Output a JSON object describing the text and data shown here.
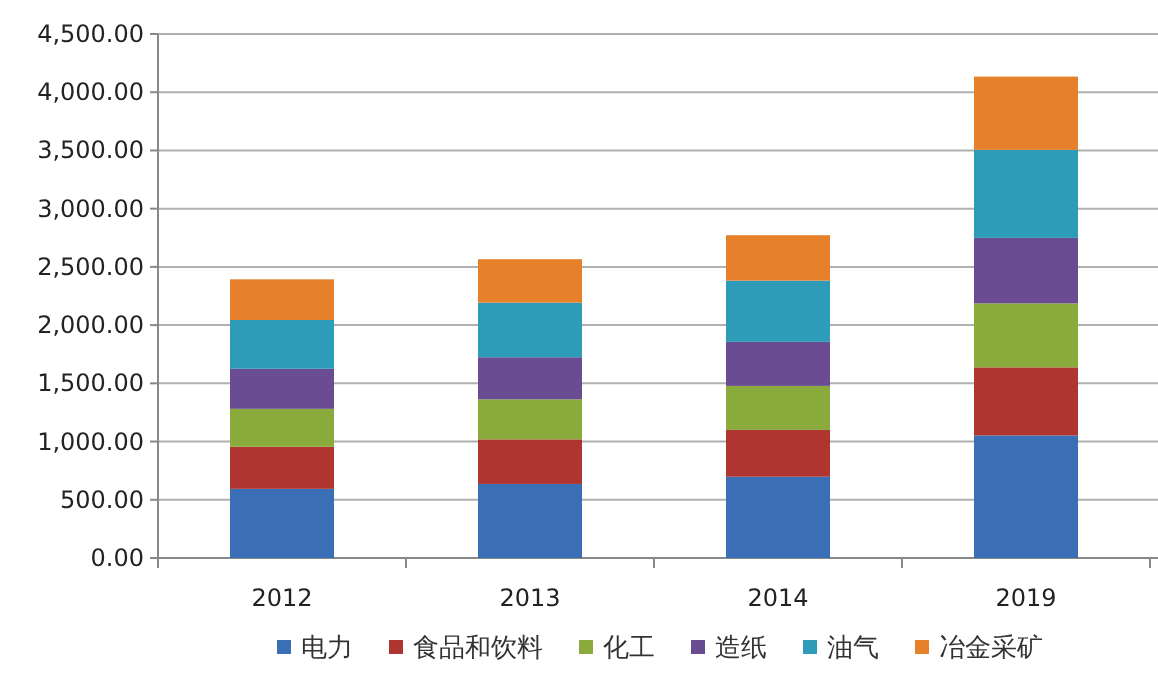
{
  "chart_data": {
    "type": "bar",
    "stacked": true,
    "categories": [
      "2012",
      "2013",
      "2014",
      "2019"
    ],
    "series": [
      {
        "name": "电力",
        "color": "#3a6fb5",
        "values": [
          594,
          636,
          698,
          1053
        ]
      },
      {
        "name": "食品和饮料",
        "color": "#b03530",
        "values": [
          361,
          383,
          402,
          584
        ]
      },
      {
        "name": "化工",
        "color": "#8aaa3c",
        "values": [
          326,
          344,
          378,
          550
        ]
      },
      {
        "name": "造纸",
        "color": "#6a4c93",
        "values": [
          344,
          361,
          378,
          562
        ]
      },
      {
        "name": "油气",
        "color": "#2e9bb8",
        "values": [
          419,
          469,
          526,
          756
        ]
      },
      {
        "name": "冶金采矿",
        "color": "#e6802a",
        "values": [
          349,
          373,
          390,
          629
        ]
      }
    ],
    "ylim": [
      0,
      4500
    ],
    "yticks": [
      {
        "value": 0,
        "label": "0.00"
      },
      {
        "value": 500,
        "label": "500.00"
      },
      {
        "value": 1000,
        "label": "1,000.00"
      },
      {
        "value": 1500,
        "label": "1,500.00"
      },
      {
        "value": 2000,
        "label": "2,000.00"
      },
      {
        "value": 2500,
        "label": "2,500.00"
      },
      {
        "value": 3000,
        "label": "3,000.00"
      },
      {
        "value": 3500,
        "label": "3,500.00"
      },
      {
        "value": 4000,
        "label": "4,000.00"
      },
      {
        "value": 4500,
        "label": "4,500.00"
      }
    ],
    "grid": "y",
    "legend": "bottom"
  }
}
